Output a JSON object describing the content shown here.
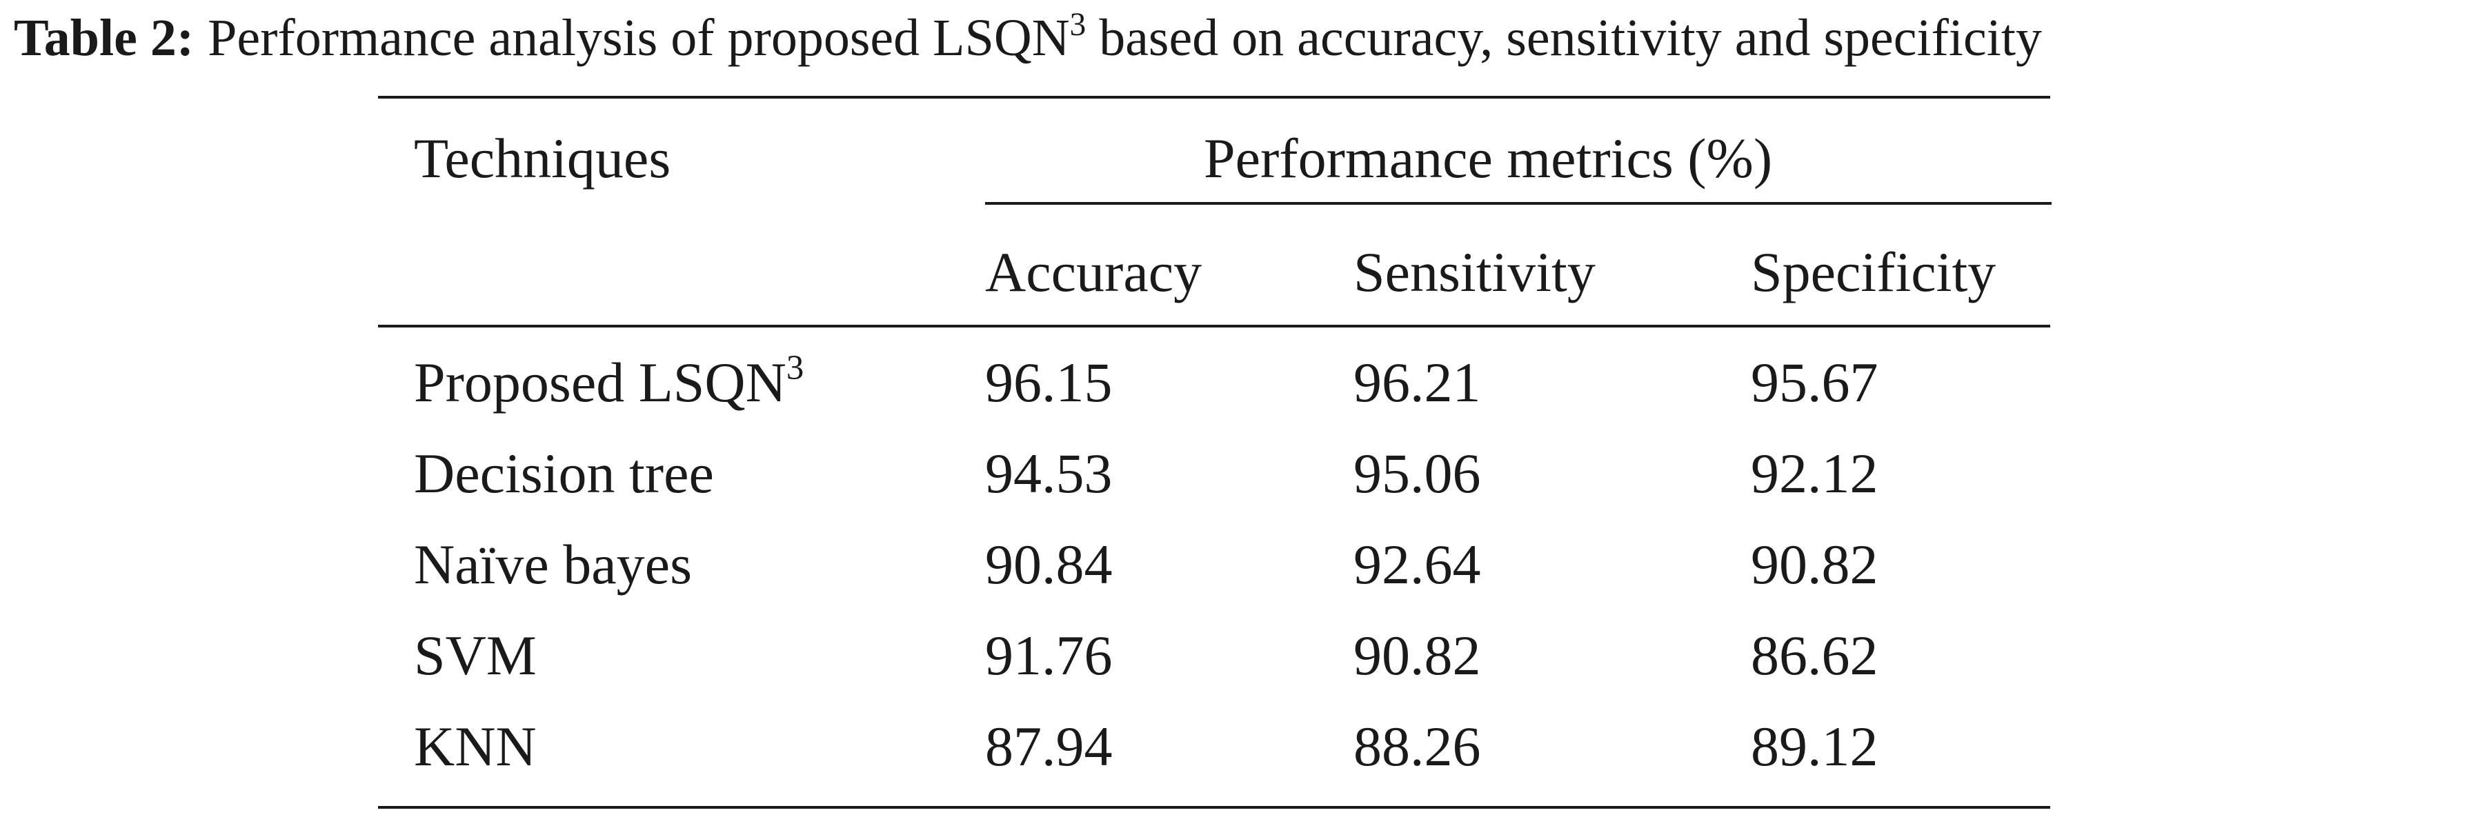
{
  "caption": {
    "label": "Table 2:",
    "text": "Performance analysis of proposed LSQN",
    "superscript": "3",
    "text_after": " based on accuracy, sensitivity and specificity"
  },
  "table": {
    "stub_header": "Techniques",
    "group_header": "Performance metrics (%)",
    "columns": [
      "Accuracy",
      "Sensitivity",
      "Specificity"
    ],
    "rows": [
      {
        "technique": "Proposed LSQN",
        "technique_sup": "3",
        "accuracy": "96.15",
        "sensitivity": "96.21",
        "specificity": "95.67"
      },
      {
        "technique": "Decision tree",
        "technique_sup": "",
        "accuracy": "94.53",
        "sensitivity": "95.06",
        "specificity": "92.12"
      },
      {
        "technique": "Naïve bayes",
        "technique_sup": "",
        "accuracy": "90.84",
        "sensitivity": "92.64",
        "specificity": "90.82"
      },
      {
        "technique": "SVM",
        "technique_sup": "",
        "accuracy": "91.76",
        "sensitivity": "90.82",
        "specificity": "86.62"
      },
      {
        "technique": "KNN",
        "technique_sup": "",
        "accuracy": "87.94",
        "sensitivity": "88.26",
        "specificity": "89.12"
      }
    ]
  }
}
